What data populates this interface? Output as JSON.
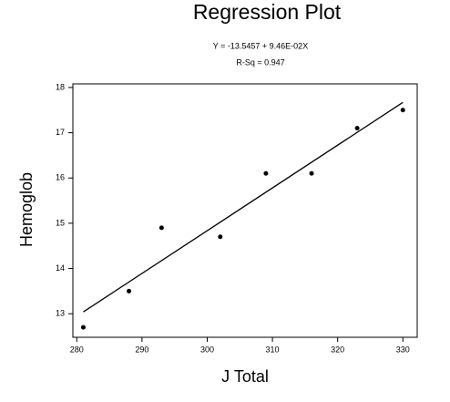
{
  "chart_data": {
    "type": "scatter",
    "title": "Regression Plot",
    "annotations": [
      "Y = -13.5457 + 9.46E-02X",
      "R-Sq = 0.947"
    ],
    "x_label": "J Total",
    "y_label": "Hemoglob",
    "x": [
      281,
      288,
      293,
      302,
      309,
      316,
      323,
      330
    ],
    "values": [
      12.7,
      13.5,
      14.9,
      14.7,
      16.1,
      16.1,
      17.1,
      17.5
    ],
    "color": "#000000",
    "fit": {
      "x": [
        281,
        330
      ],
      "values": [
        13.04,
        17.67
      ]
    },
    "xlim": [
      279.4,
      332.2
    ],
    "ylim": [
      12.48,
      18.08
    ],
    "xticks": [
      280,
      290,
      300,
      310,
      320,
      330
    ],
    "yticks": [
      13,
      14,
      15,
      16,
      17,
      18
    ]
  }
}
